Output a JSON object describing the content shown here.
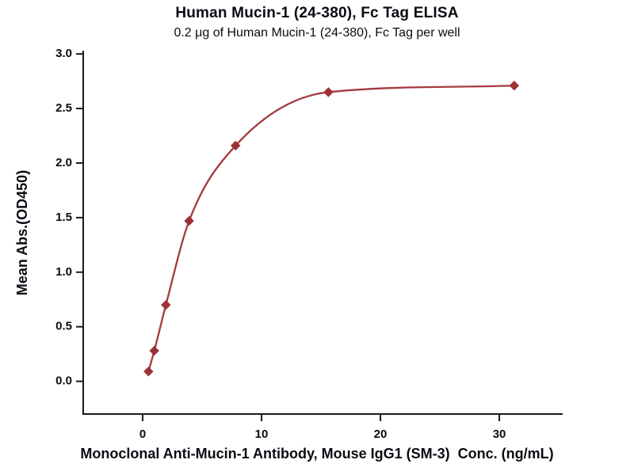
{
  "chart_data": {
    "type": "scatter",
    "title": "Human Mucin-1 (24-380), Fc Tag ELISA",
    "subtitle": "0.2 μg of Human Mucin-1 (24-380), Fc Tag per well",
    "xlabel": "Monoclonal Anti-Mucin-1 Antibody, Mouse IgG1 (SM-3)  Conc. (ng/mL)",
    "ylabel": "Mean Abs.(OD450)",
    "x": [
      0.488,
      0.977,
      1.953,
      3.906,
      7.813,
      15.625,
      31.25
    ],
    "y": [
      0.09,
      0.28,
      0.7,
      1.47,
      2.16,
      2.65,
      2.71
    ],
    "curve": "smooth 4PL-style fit through points",
    "marker": "diamond",
    "xlim": [
      -5,
      35.33
    ],
    "ylim": [
      -0.3,
      3.03
    ],
    "xticks": [
      0,
      10,
      20,
      30
    ],
    "xtick_labels": [
      "0",
      "10",
      "20",
      "30"
    ],
    "yticks": [
      0.0,
      0.5,
      1.0,
      1.5,
      2.0,
      2.5,
      3.0
    ],
    "ytick_labels": [
      "0.0",
      "0.5",
      "1.0",
      "1.5",
      "2.0",
      "2.5",
      "3.0"
    ],
    "grid": false,
    "legend": null,
    "colors": {
      "curve": "#A43A3E",
      "marker": "#9C3137",
      "axis": "#1a1a1a",
      "text": "#0b0b14",
      "background": "#ffffff"
    }
  }
}
